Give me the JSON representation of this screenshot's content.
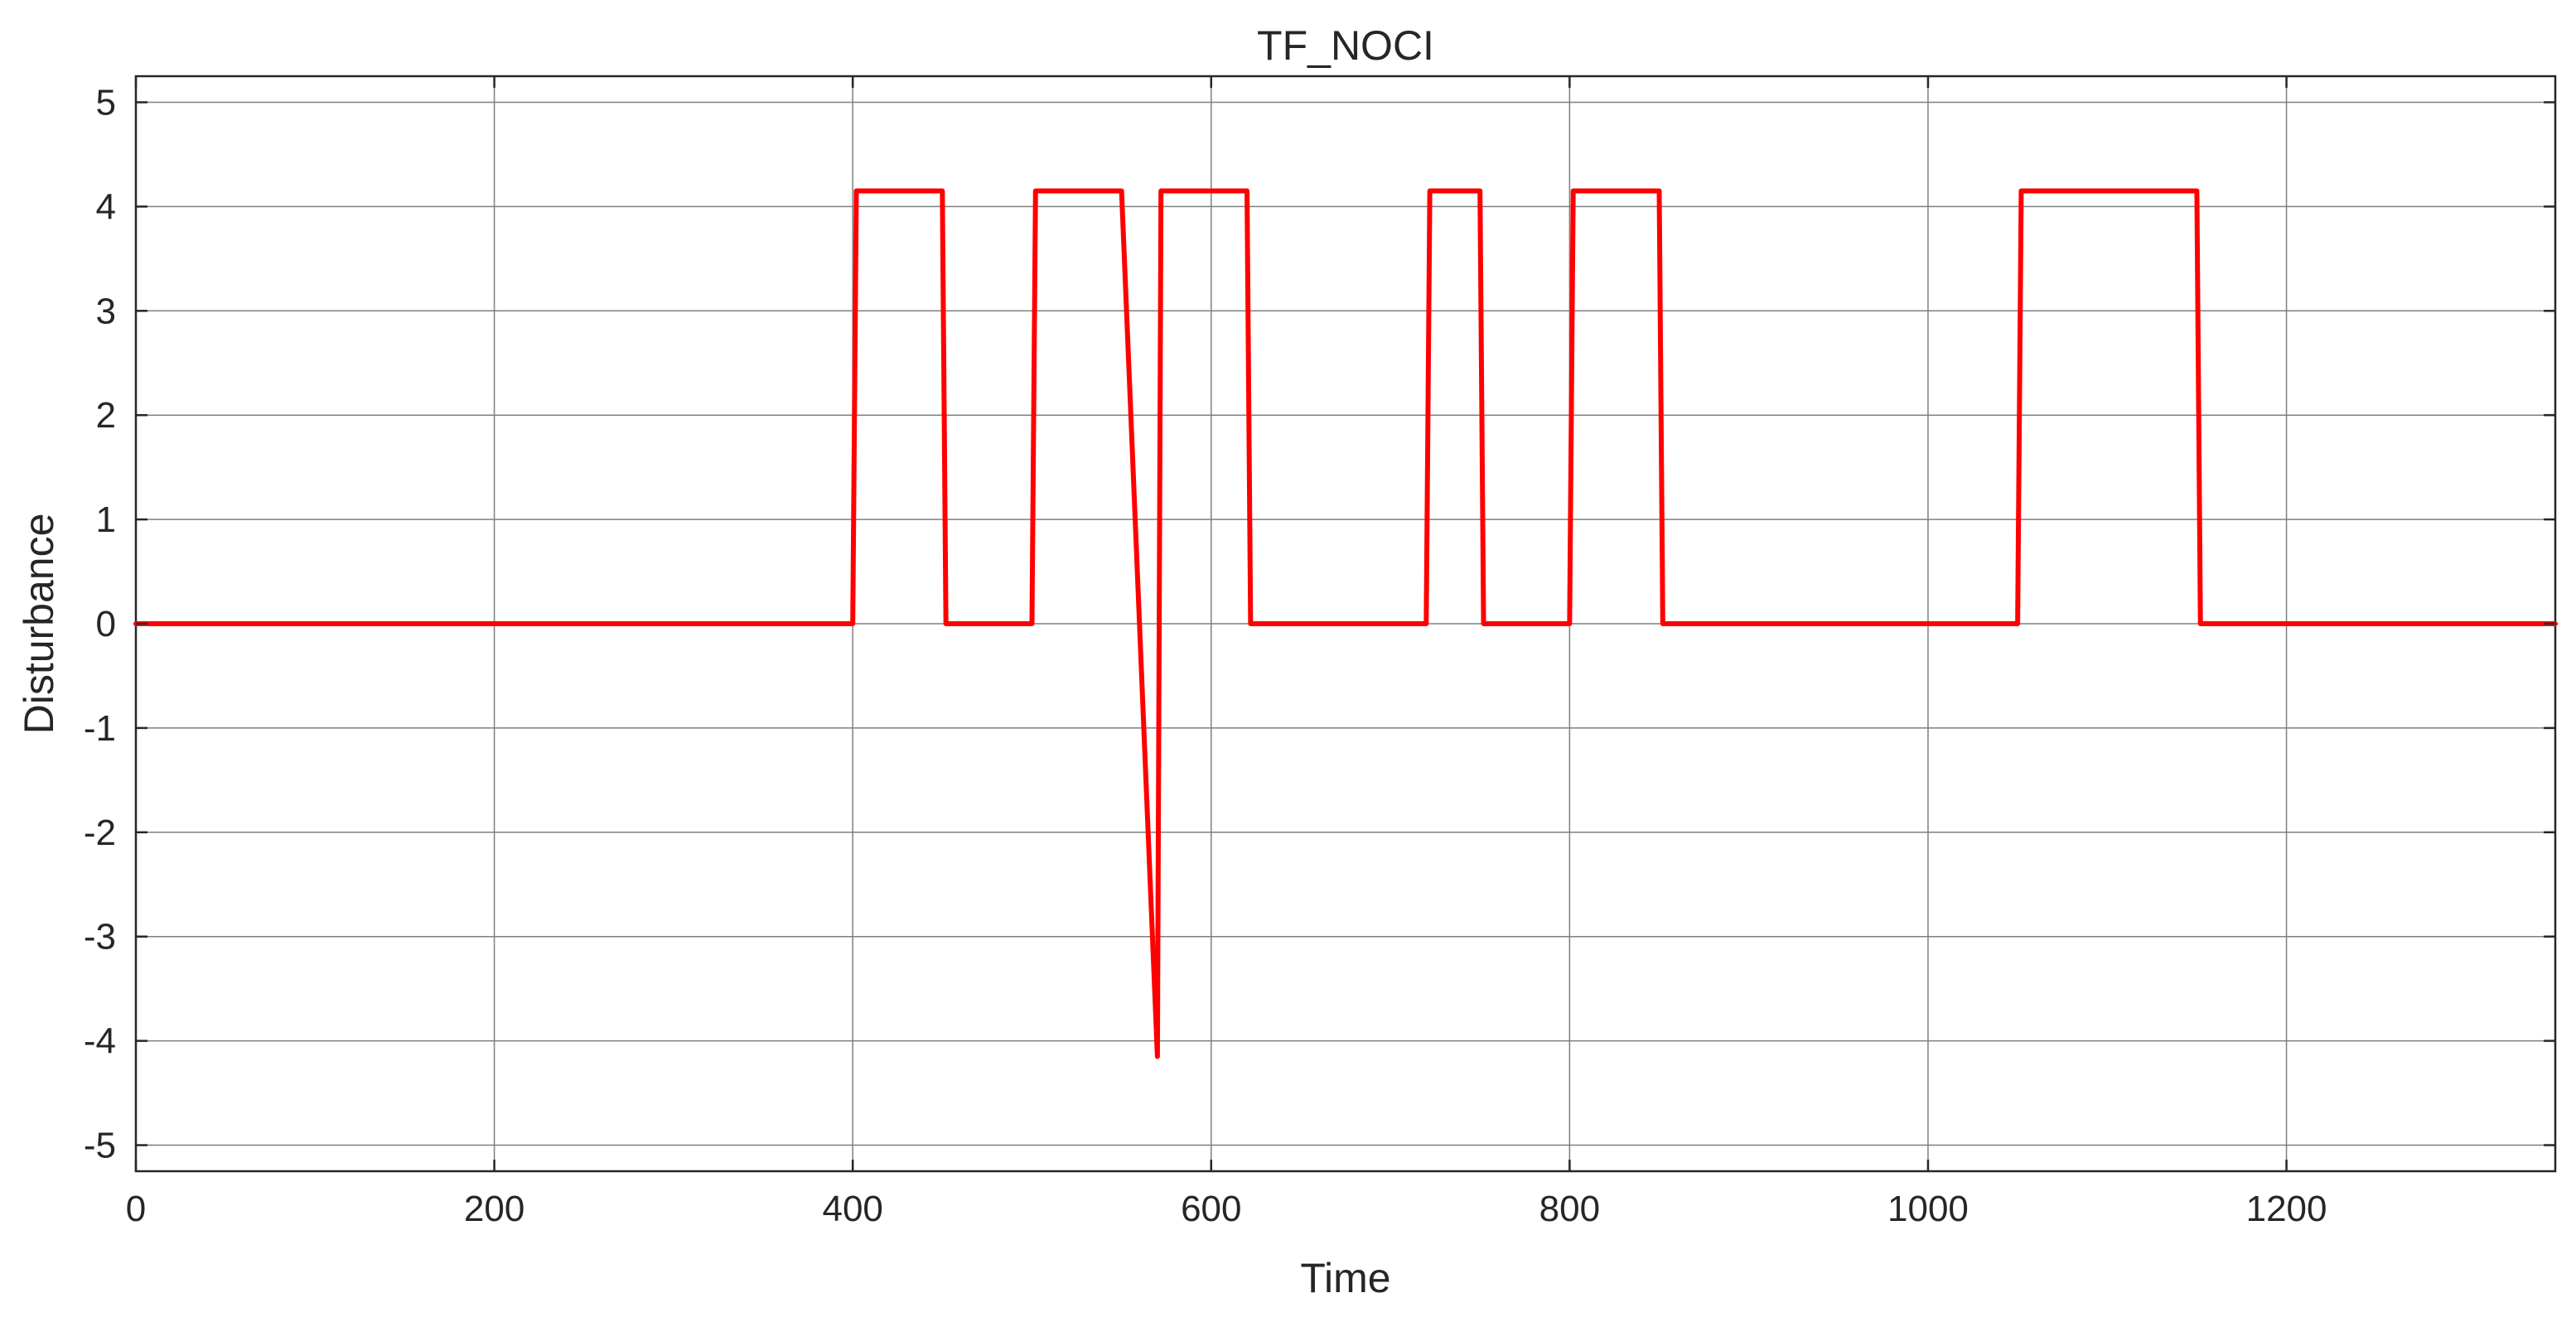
{
  "chart_data": {
    "type": "line",
    "title": "TF_NOCI",
    "xlabel": "Time",
    "ylabel": "Disturbance",
    "xlim": [
      0,
      1350
    ],
    "ylim": [
      -5.25,
      5.25
    ],
    "xticks": [
      0,
      200,
      400,
      600,
      800,
      1000,
      1200
    ],
    "yticks": [
      -5,
      -4,
      -3,
      -2,
      -1,
      0,
      1,
      2,
      3,
      4,
      5
    ],
    "xtick_labels": [
      "0",
      "200",
      "400",
      "600",
      "800",
      "1000",
      "1200"
    ],
    "ytick_labels": [
      "-5",
      "-4",
      "-3",
      "-2",
      "-1",
      "0",
      "1",
      "2",
      "3",
      "4",
      "5"
    ],
    "grid": true,
    "legend": "none",
    "series": [
      {
        "color": "#ff0000",
        "x": [
          0,
          400,
          402,
          450,
          452,
          500,
          502,
          550,
          570,
          571,
          572,
          620,
          622,
          720,
          722,
          750,
          752,
          800,
          802,
          850,
          852,
          1050,
          1052,
          1150,
          1152,
          1350
        ],
        "y": [
          0,
          0,
          4.15,
          4.15,
          0,
          0,
          4.15,
          4.15,
          -4.15,
          0,
          4.15,
          4.15,
          0,
          0,
          4.15,
          4.15,
          0,
          0,
          4.15,
          4.15,
          0,
          0,
          4.15,
          4.15,
          0,
          0
        ]
      }
    ]
  }
}
